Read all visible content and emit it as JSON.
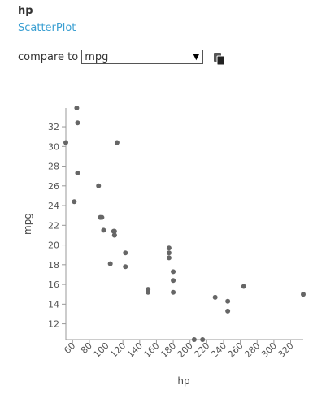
{
  "header": {
    "title": "hp",
    "subtitle": "ScatterPlot"
  },
  "compare": {
    "label": "compare to",
    "selected": "mpg"
  },
  "icons": {
    "copy": "copy-icon",
    "dropdown": "chevron-down-icon"
  },
  "colors": {
    "point": "#666666",
    "link": "#3a9fd2"
  },
  "chart_data": {
    "type": "scatter",
    "xlabel": "hp",
    "ylabel": "mpg",
    "xlim": [
      52,
      335
    ],
    "ylim": [
      10.4,
      33.9
    ],
    "xticks": [
      60,
      80,
      100,
      120,
      140,
      160,
      180,
      200,
      220,
      240,
      260,
      280,
      300,
      320
    ],
    "yticks": [
      12,
      14,
      16,
      18,
      20,
      22,
      24,
      26,
      28,
      30,
      32
    ],
    "points": [
      [
        110,
        21.0
      ],
      [
        110,
        21.0
      ],
      [
        93,
        22.8
      ],
      [
        110,
        21.4
      ],
      [
        175,
        18.7
      ],
      [
        105,
        18.1
      ],
      [
        245,
        14.3
      ],
      [
        62,
        24.4
      ],
      [
        95,
        22.8
      ],
      [
        123,
        19.2
      ],
      [
        123,
        17.8
      ],
      [
        180,
        16.4
      ],
      [
        180,
        17.3
      ],
      [
        180,
        15.2
      ],
      [
        205,
        10.4
      ],
      [
        215,
        10.4
      ],
      [
        230,
        14.7
      ],
      [
        66,
        32.4
      ],
      [
        52,
        30.4
      ],
      [
        65,
        33.9
      ],
      [
        97,
        21.5
      ],
      [
        150,
        15.5
      ],
      [
        150,
        15.2
      ],
      [
        245,
        13.3
      ],
      [
        175,
        19.2
      ],
      [
        66,
        27.3
      ],
      [
        91,
        26.0
      ],
      [
        113,
        30.4
      ],
      [
        264,
        15.8
      ],
      [
        175,
        19.7
      ],
      [
        335,
        15.0
      ],
      [
        109,
        21.4
      ]
    ]
  }
}
